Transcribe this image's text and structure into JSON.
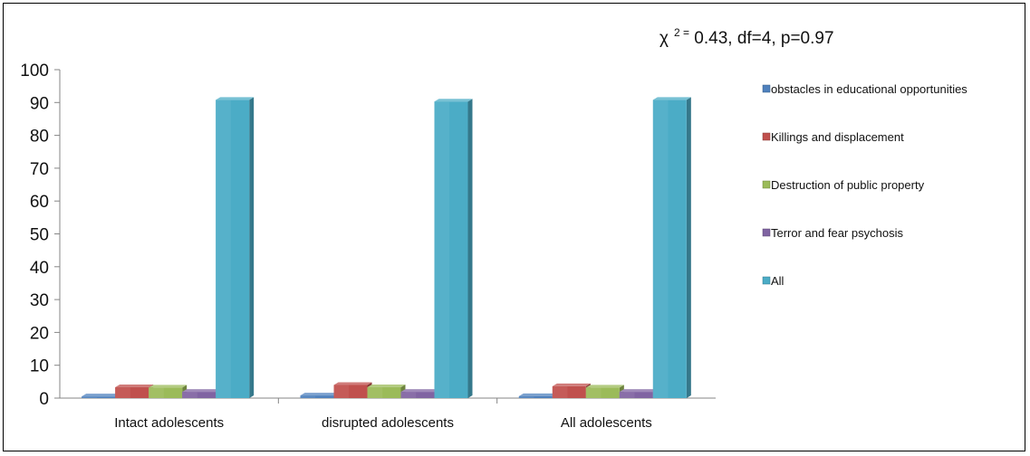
{
  "chart_data": {
    "type": "bar",
    "annotation": "χ ² = 0.43, df=4, p=0.97",
    "annotation_parts": {
      "chi": "χ",
      "sup": "2 =",
      "rest": " 0.43, df=4, p=0.97"
    },
    "categories": [
      "Intact adolescents",
      "disrupted adolescents",
      "All adolescents"
    ],
    "series": [
      {
        "name": "obstacles in educational opportunities",
        "color": "#4f81bd",
        "values": [
          0.5,
          0.8,
          0.6
        ]
      },
      {
        "name": "Killings and displacement",
        "color": "#c0504d",
        "values": [
          3.3,
          4.0,
          3.6
        ]
      },
      {
        "name": "Destruction of public property",
        "color": "#9bbb59",
        "values": [
          3.2,
          3.3,
          3.2
        ]
      },
      {
        "name": "Terror and fear psychosis",
        "color": "#8064a2",
        "values": [
          1.9,
          1.9,
          1.9
        ]
      },
      {
        "name": "All",
        "color": "#4bacc6",
        "values": [
          90.8,
          90.3,
          90.8
        ]
      }
    ],
    "ylim": [
      0,
      100
    ],
    "yticks": [
      0,
      10,
      20,
      30,
      40,
      50,
      60,
      70,
      80,
      90,
      100
    ],
    "grid": false,
    "legend_position": "right"
  }
}
